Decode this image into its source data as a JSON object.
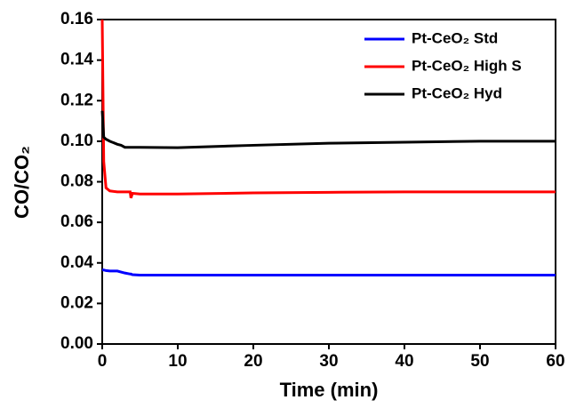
{
  "chart_data": {
    "type": "line",
    "xlabel": "Time (min)",
    "ylabel": "CO/CO₂",
    "x": [
      0,
      0.2,
      0.5,
      1,
      2,
      2.5,
      3,
      3.7,
      3.8,
      4,
      5,
      10,
      20,
      30,
      40,
      50,
      60
    ],
    "series": [
      {
        "name": "Pt-CeO₂ Std",
        "color": "#0000ff",
        "values": [
          0.0365,
          0.0365,
          0.0362,
          0.036,
          0.036,
          0.0355,
          0.035,
          0.0345,
          0.0345,
          0.0342,
          0.034,
          0.034,
          0.034,
          0.034,
          0.034,
          0.034,
          0.034
        ]
      },
      {
        "name": "Pt-CeO₂ High S",
        "color": "#ff0000",
        "values": [
          0.16,
          0.09,
          0.077,
          0.0755,
          0.075,
          0.075,
          0.075,
          0.075,
          0.072,
          0.0743,
          0.074,
          0.074,
          0.0745,
          0.0748,
          0.075,
          0.075,
          0.075
        ]
      },
      {
        "name": "Pt-CeO₂ Hyd",
        "color": "#000000",
        "values": [
          0.115,
          0.102,
          0.101,
          0.1,
          0.0985,
          0.098,
          0.097,
          0.097,
          0.097,
          0.097,
          0.097,
          0.0968,
          0.098,
          0.099,
          0.0995,
          0.1,
          0.1
        ]
      }
    ],
    "xlim": [
      0,
      60
    ],
    "xticks": [
      0,
      10,
      20,
      30,
      40,
      50,
      60
    ],
    "ylim": [
      0,
      0.16
    ],
    "yticks": [
      {
        "value": 0,
        "label": "0.00"
      },
      {
        "value": 0.02,
        "label": "0.02"
      },
      {
        "value": 0.04,
        "label": "0.04"
      },
      {
        "value": 0.06,
        "label": "0.06"
      },
      {
        "value": 0.08,
        "label": "0.08"
      },
      {
        "value": 0.1,
        "label": "0.10"
      },
      {
        "value": 0.12,
        "label": "0.12"
      },
      {
        "value": 0.14,
        "label": "0.14"
      },
      {
        "value": 0.16,
        "label": "0.16"
      }
    ],
    "legend": "upper-right",
    "grid": false
  }
}
